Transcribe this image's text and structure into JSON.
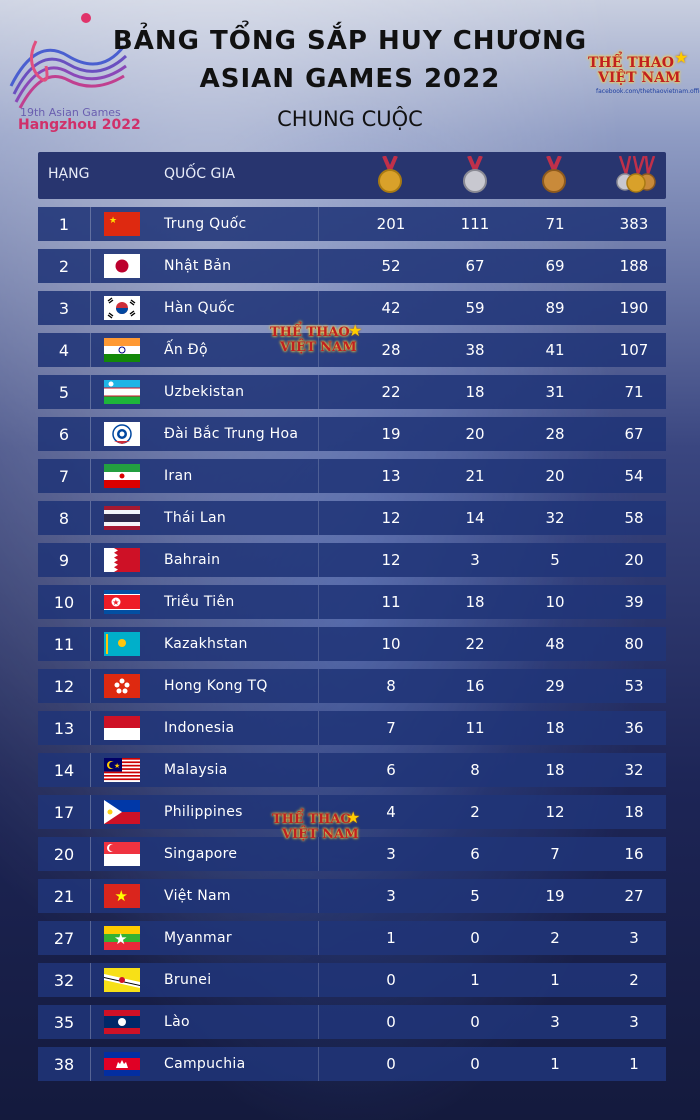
{
  "header": {
    "logo_line1": "19th Asian Games",
    "logo_line2": "Hangzhou 2022",
    "title_line1": "BẢNG TỔNG SẮP HUY CHƯƠNG",
    "title_line2": "ASIAN GAMES 2022",
    "subtitle": "CHUNG CUỘC",
    "brand_line1": "THỂ THAO",
    "brand_line2": "VIỆT NAM",
    "brand_url": "facebook.com/thethaovietnam.official"
  },
  "table": {
    "columns": {
      "rank": "HẠNG",
      "country": "QUỐC GIA",
      "gold_icon": "gold-medal-icon",
      "silver_icon": "silver-medal-icon",
      "bronze_icon": "bronze-medal-icon",
      "total_icon": "medals-total-icon"
    },
    "rows": [
      {
        "rank": "1",
        "flag": "china-flag-icon",
        "country": "Trung Quốc",
        "gold": "201",
        "silver": "111",
        "bronze": "71",
        "total": "383"
      },
      {
        "rank": "2",
        "flag": "japan-flag-icon",
        "country": "Nhật Bản",
        "gold": "52",
        "silver": "67",
        "bronze": "69",
        "total": "188"
      },
      {
        "rank": "3",
        "flag": "south-korea-flag-icon",
        "country": "Hàn Quốc",
        "gold": "42",
        "silver": "59",
        "bronze": "89",
        "total": "190"
      },
      {
        "rank": "4",
        "flag": "india-flag-icon",
        "country": "Ấn Độ",
        "gold": "28",
        "silver": "38",
        "bronze": "41",
        "total": "107"
      },
      {
        "rank": "5",
        "flag": "uzbekistan-flag-icon",
        "country": "Uzbekistan",
        "gold": "22",
        "silver": "18",
        "bronze": "31",
        "total": "71"
      },
      {
        "rank": "6",
        "flag": "chinese-taipei-flag-icon",
        "country": "Đài Bắc Trung Hoa",
        "gold": "19",
        "silver": "20",
        "bronze": "28",
        "total": "67"
      },
      {
        "rank": "7",
        "flag": "iran-flag-icon",
        "country": "Iran",
        "gold": "13",
        "silver": "21",
        "bronze": "20",
        "total": "54"
      },
      {
        "rank": "8",
        "flag": "thailand-flag-icon",
        "country": "Thái Lan",
        "gold": "12",
        "silver": "14",
        "bronze": "32",
        "total": "58"
      },
      {
        "rank": "9",
        "flag": "bahrain-flag-icon",
        "country": "Bahrain",
        "gold": "12",
        "silver": "3",
        "bronze": "5",
        "total": "20"
      },
      {
        "rank": "10",
        "flag": "north-korea-flag-icon",
        "country": "Triều Tiên",
        "gold": "11",
        "silver": "18",
        "bronze": "10",
        "total": "39"
      },
      {
        "rank": "11",
        "flag": "kazakhstan-flag-icon",
        "country": "Kazakhstan",
        "gold": "10",
        "silver": "22",
        "bronze": "48",
        "total": "80"
      },
      {
        "rank": "12",
        "flag": "hong-kong-flag-icon",
        "country": "Hong Kong TQ",
        "gold": "8",
        "silver": "16",
        "bronze": "29",
        "total": "53"
      },
      {
        "rank": "13",
        "flag": "indonesia-flag-icon",
        "country": "Indonesia",
        "gold": "7",
        "silver": "11",
        "bronze": "18",
        "total": "36"
      },
      {
        "rank": "14",
        "flag": "malaysia-flag-icon",
        "country": "Malaysia",
        "gold": "6",
        "silver": "8",
        "bronze": "18",
        "total": "32"
      },
      {
        "rank": "17",
        "flag": "philippines-flag-icon",
        "country": "Philippines",
        "gold": "4",
        "silver": "2",
        "bronze": "12",
        "total": "18"
      },
      {
        "rank": "20",
        "flag": "singapore-flag-icon",
        "country": "Singapore",
        "gold": "3",
        "silver": "6",
        "bronze": "7",
        "total": "16"
      },
      {
        "rank": "21",
        "flag": "vietnam-flag-icon",
        "country": "Việt Nam",
        "gold": "3",
        "silver": "5",
        "bronze": "19",
        "total": "27"
      },
      {
        "rank": "27",
        "flag": "myanmar-flag-icon",
        "country": "Myanmar",
        "gold": "1",
        "silver": "0",
        "bronze": "2",
        "total": "3"
      },
      {
        "rank": "32",
        "flag": "brunei-flag-icon",
        "country": "Brunei",
        "gold": "0",
        "silver": "1",
        "bronze": "1",
        "total": "2"
      },
      {
        "rank": "35",
        "flag": "laos-flag-icon",
        "country": "Lào",
        "gold": "0",
        "silver": "0",
        "bronze": "3",
        "total": "3"
      },
      {
        "rank": "38",
        "flag": "cambodia-flag-icon",
        "country": "Campuchia",
        "gold": "0",
        "silver": "0",
        "bronze": "1",
        "total": "1"
      }
    ]
  },
  "colors": {
    "header_row": "#28356f",
    "data_row": "#203478",
    "brand_red": "#c02020"
  }
}
